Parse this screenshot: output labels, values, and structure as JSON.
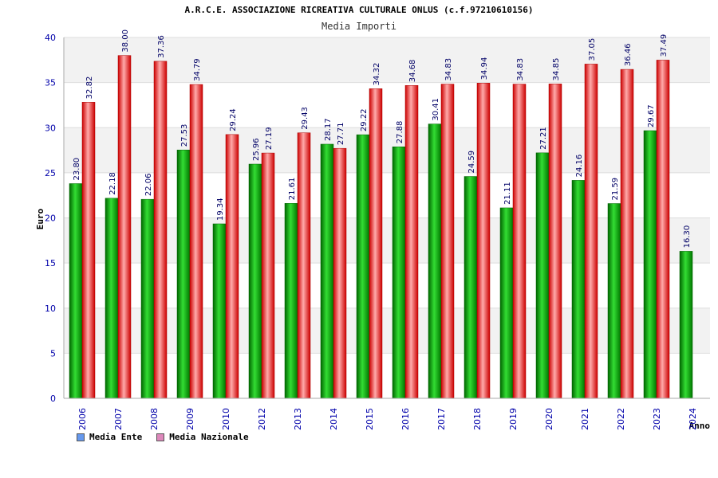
{
  "chart_data": {
    "type": "bar",
    "title": "A.R.C.E. ASSOCIAZIONE RICREATIVA CULTURALE ONLUS (c.f.97210610156)",
    "subtitle": "Media Importi",
    "xlabel": "Anno",
    "ylabel": "Euro",
    "ylim": [
      0,
      40
    ],
    "yticks": [
      0,
      5,
      10,
      15,
      20,
      25,
      30,
      35,
      40
    ],
    "grid": true,
    "legend_position": "bottom-left",
    "categories": [
      "2006",
      "2007",
      "2008",
      "2009",
      "2010",
      "2012",
      "2013",
      "2014",
      "2015",
      "2016",
      "2017",
      "2018",
      "2019",
      "2020",
      "2021",
      "2022",
      "2023",
      "2024"
    ],
    "series": [
      {
        "name": "Media Ente",
        "color": "#00aa00",
        "legend_color": "#6699ee",
        "values": [
          23.8,
          22.18,
          22.06,
          27.53,
          19.34,
          25.96,
          21.61,
          28.17,
          29.22,
          27.88,
          30.41,
          24.59,
          21.11,
          27.21,
          24.16,
          21.59,
          29.67,
          16.3
        ],
        "labels": [
          "23.80",
          "22.18",
          "22.06",
          "27.53",
          "19.34",
          "25.96",
          "21.61",
          "28.17",
          "29.22",
          "27.88",
          "30.41",
          "24.59",
          "21.11",
          "27.21",
          "24.16",
          "21.59",
          "29.67",
          "16.30"
        ]
      },
      {
        "name": "Media Nazionale",
        "color": "#dd1111",
        "legend_color": "#dd88bb",
        "values": [
          32.82,
          38.0,
          37.36,
          34.79,
          29.24,
          27.19,
          29.43,
          27.71,
          34.32,
          34.68,
          34.83,
          34.94,
          34.83,
          34.85,
          37.05,
          36.46,
          37.49,
          null
        ],
        "labels": [
          "32.82",
          "38.00",
          "37.36",
          "34.79",
          "29.24",
          "27.19",
          "29.43",
          "27.71",
          "34.32",
          "34.68",
          "34.83",
          "34.94",
          "34.83",
          "34.85",
          "37.05",
          "36.46",
          "37.49",
          null
        ]
      }
    ]
  }
}
